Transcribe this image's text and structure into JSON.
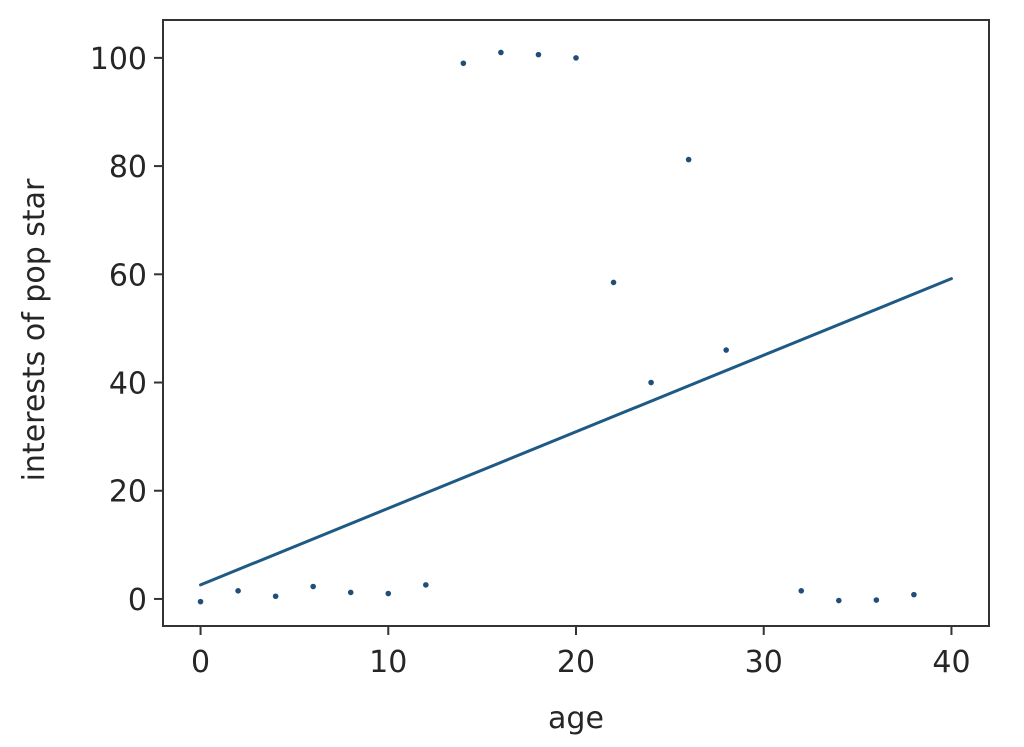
{
  "chart_data": {
    "type": "scatter",
    "title": "",
    "xlabel": "age",
    "ylabel": "interests of pop star",
    "xlim": [
      -2,
      42
    ],
    "ylim": [
      -5,
      107
    ],
    "xticks": [
      0,
      10,
      20,
      30,
      40
    ],
    "yticks": [
      0,
      20,
      40,
      60,
      80,
      100
    ],
    "grid": false,
    "colors": {
      "points": "#1f4e79",
      "line": "#1f5a85",
      "axes": "#333333",
      "text": "#262626"
    },
    "points": [
      {
        "x": 0,
        "y": -0.5
      },
      {
        "x": 2,
        "y": 1.5
      },
      {
        "x": 4,
        "y": 0.5
      },
      {
        "x": 6,
        "y": 2.3
      },
      {
        "x": 8,
        "y": 1.2
      },
      {
        "x": 10,
        "y": 1.0
      },
      {
        "x": 12,
        "y": 2.6
      },
      {
        "x": 14,
        "y": 99
      },
      {
        "x": 16,
        "y": 101
      },
      {
        "x": 18,
        "y": 100.6
      },
      {
        "x": 20,
        "y": 100
      },
      {
        "x": 22,
        "y": 58.5
      },
      {
        "x": 24,
        "y": 40
      },
      {
        "x": 26,
        "y": 81.2
      },
      {
        "x": 28,
        "y": 46
      },
      {
        "x": 32,
        "y": 1.5
      },
      {
        "x": 34,
        "y": -0.3
      },
      {
        "x": 36,
        "y": -0.2
      },
      {
        "x": 38,
        "y": 0.8
      }
    ],
    "fit_line": {
      "x": [
        0,
        40
      ],
      "y": [
        2.6,
        59.2
      ]
    }
  }
}
